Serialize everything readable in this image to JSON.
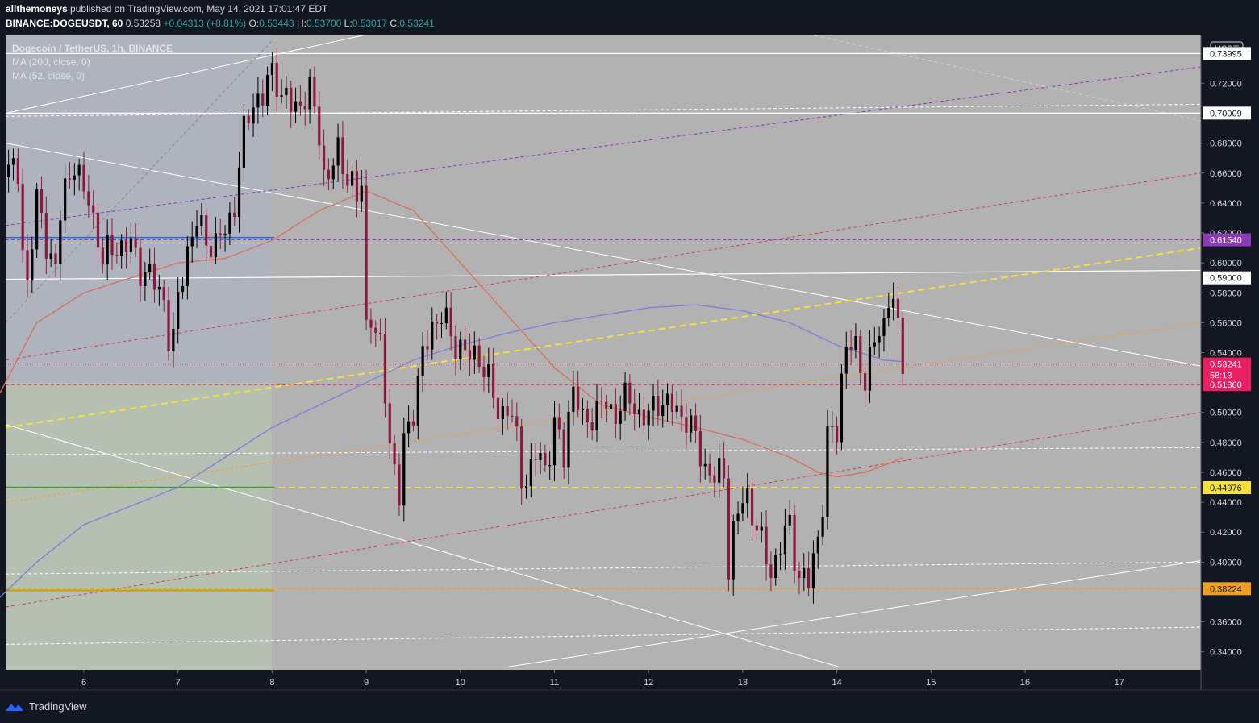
{
  "publish": {
    "user": "allthemoneys",
    "text": "published on TradingView.com, May 14, 2021 17:01:47 EDT"
  },
  "quote": {
    "symbol": "BINANCE:DOGEUSDT, 60",
    "last": "0.53258",
    "change": "+0.04313 (+8.81%)",
    "o_label": "O:",
    "o": "0.53443",
    "h_label": "H:",
    "h": "0.53700",
    "l_label": "L:",
    "l": "0.53017",
    "c_label": "C:",
    "c": "0.53241"
  },
  "legend": {
    "title": "Dogecoin / TetherUS, 1h, BINANCE",
    "ma200": "MA (200, close, 0)",
    "ma52": "MA (52, close, 0)"
  },
  "footer": {
    "brand": "TradingView"
  },
  "colors": {
    "bg_plot": "#b2b2b2",
    "up": "#000000",
    "down": "#8b1a3a",
    "ma200": "#7b7fd9",
    "ma52": "#d9705a",
    "purple": "#8a3bb5",
    "red": "#d04050",
    "yellow": "#f5e13a",
    "orange": "#f0a020"
  },
  "chart_data": {
    "type": "candlestick",
    "currency": "USDT",
    "x_ticks": [
      "6",
      "7",
      "8",
      "9",
      "10",
      "11",
      "12",
      "13",
      "14",
      "15",
      "16",
      "17"
    ],
    "y_ticks": [
      "0.72000",
      "0.68000",
      "0.66000",
      "0.64000",
      "0.62000",
      "0.60000",
      "0.58000",
      "0.56000",
      "0.54000",
      "0.50000",
      "0.48000",
      "0.46000",
      "0.44000",
      "0.42000",
      "0.40000",
      "0.36000",
      "0.34000"
    ],
    "ylim": [
      0.328,
      0.752
    ],
    "price_labels": [
      {
        "text": "0.73995",
        "value": 0.73995,
        "bg": "#ffffff",
        "fg": "#131722"
      },
      {
        "text": "0.70009",
        "value": 0.70009,
        "bg": "#ffffff",
        "fg": "#131722"
      },
      {
        "text": "0.61540",
        "value": 0.6154,
        "bg": "#8a3bb5",
        "fg": "#ffffff"
      },
      {
        "text": "0.59000",
        "value": 0.59,
        "bg": "#ffffff",
        "fg": "#131722"
      },
      {
        "text": "0.53241",
        "value": 0.53241,
        "bg": "#e91e63",
        "fg": "#ffffff",
        "sub": "58:13"
      },
      {
        "text": "0.51860",
        "value": 0.5186,
        "bg": "#e91e63",
        "fg": "#ffffff"
      },
      {
        "text": "0.44976",
        "value": 0.44976,
        "bg": "#f5e13a",
        "fg": "#131722"
      },
      {
        "text": "0.38224",
        "value": 0.38224,
        "bg": "#f0a020",
        "fg": "#131722"
      }
    ],
    "close_path": [
      [
        5.05,
        0.668
      ],
      [
        5.1,
        0.672
      ],
      [
        5.2,
        0.668
      ],
      [
        5.3,
        0.655
      ],
      [
        5.35,
        0.605
      ],
      [
        5.4,
        0.59
      ],
      [
        5.45,
        0.62
      ],
      [
        5.5,
        0.64
      ],
      [
        5.6,
        0.612
      ],
      [
        5.7,
        0.6
      ],
      [
        5.75,
        0.63
      ],
      [
        5.85,
        0.66
      ],
      [
        5.9,
        0.67
      ],
      [
        6.0,
        0.645
      ],
      [
        6.05,
        0.64
      ],
      [
        6.15,
        0.62
      ],
      [
        6.2,
        0.6
      ],
      [
        6.3,
        0.61
      ],
      [
        6.4,
        0.612
      ],
      [
        6.5,
        0.61
      ],
      [
        6.6,
        0.598
      ],
      [
        6.7,
        0.59
      ],
      [
        6.75,
        0.585
      ],
      [
        6.85,
        0.578
      ],
      [
        6.9,
        0.55
      ],
      [
        6.95,
        0.545
      ],
      [
        7.0,
        0.575
      ],
      [
        7.05,
        0.595
      ],
      [
        7.1,
        0.61
      ],
      [
        7.2,
        0.625
      ],
      [
        7.3,
        0.618
      ],
      [
        7.4,
        0.61
      ],
      [
        7.5,
        0.622
      ],
      [
        7.6,
        0.64
      ],
      [
        7.7,
        0.685
      ],
      [
        7.75,
        0.7
      ],
      [
        7.8,
        0.71
      ],
      [
        7.9,
        0.708
      ],
      [
        8.0,
        0.73
      ],
      [
        8.05,
        0.725
      ],
      [
        8.1,
        0.71
      ],
      [
        8.2,
        0.705
      ],
      [
        8.3,
        0.708
      ],
      [
        8.4,
        0.712
      ],
      [
        8.5,
        0.69
      ],
      [
        8.55,
        0.66
      ],
      [
        8.6,
        0.655
      ],
      [
        8.7,
        0.675
      ],
      [
        8.8,
        0.66
      ],
      [
        8.9,
        0.64
      ],
      [
        8.95,
        0.655
      ],
      [
        9.0,
        0.56
      ],
      [
        9.05,
        0.565
      ],
      [
        9.1,
        0.55
      ],
      [
        9.15,
        0.54
      ],
      [
        9.2,
        0.515
      ],
      [
        9.25,
        0.485
      ],
      [
        9.3,
        0.46
      ],
      [
        9.35,
        0.44
      ],
      [
        9.4,
        0.48
      ],
      [
        9.5,
        0.505
      ],
      [
        9.6,
        0.535
      ],
      [
        9.7,
        0.56
      ],
      [
        9.8,
        0.565
      ],
      [
        9.9,
        0.55
      ],
      [
        10.0,
        0.545
      ],
      [
        10.1,
        0.535
      ],
      [
        10.2,
        0.54
      ],
      [
        10.3,
        0.52
      ],
      [
        10.4,
        0.5
      ],
      [
        10.5,
        0.505
      ],
      [
        10.6,
        0.48
      ],
      [
        10.65,
        0.46
      ],
      [
        10.7,
        0.455
      ],
      [
        10.8,
        0.47
      ],
      [
        10.9,
        0.465
      ],
      [
        11.0,
        0.49
      ],
      [
        11.1,
        0.47
      ],
      [
        11.15,
        0.5
      ],
      [
        11.2,
        0.52
      ],
      [
        11.3,
        0.49
      ],
      [
        11.4,
        0.5
      ],
      [
        11.5,
        0.505
      ],
      [
        11.6,
        0.5
      ],
      [
        11.7,
        0.505
      ],
      [
        11.8,
        0.508
      ],
      [
        11.9,
        0.5
      ],
      [
        12.0,
        0.495
      ],
      [
        12.1,
        0.51
      ],
      [
        12.2,
        0.505
      ],
      [
        12.3,
        0.5
      ],
      [
        12.4,
        0.498
      ],
      [
        12.5,
        0.48
      ],
      [
        12.6,
        0.465
      ],
      [
        12.7,
        0.455
      ],
      [
        12.8,
        0.46
      ],
      [
        12.85,
        0.4
      ],
      [
        12.9,
        0.42
      ],
      [
        13.0,
        0.44
      ],
      [
        13.05,
        0.445
      ],
      [
        13.1,
        0.435
      ],
      [
        13.2,
        0.41
      ],
      [
        13.3,
        0.395
      ],
      [
        13.4,
        0.41
      ],
      [
        13.5,
        0.425
      ],
      [
        13.6,
        0.39
      ],
      [
        13.7,
        0.385
      ],
      [
        13.8,
        0.42
      ],
      [
        13.85,
        0.44
      ],
      [
        13.9,
        0.48
      ],
      [
        14.0,
        0.49
      ],
      [
        14.05,
        0.525
      ],
      [
        14.1,
        0.545
      ],
      [
        14.2,
        0.54
      ],
      [
        14.3,
        0.525
      ],
      [
        14.4,
        0.545
      ],
      [
        14.5,
        0.56
      ],
      [
        14.55,
        0.58
      ],
      [
        14.6,
        0.575
      ],
      [
        14.65,
        0.55
      ],
      [
        14.7,
        0.532
      ]
    ],
    "ma200_path": [
      [
        5.0,
        0.37
      ],
      [
        5.5,
        0.4
      ],
      [
        6.0,
        0.425
      ],
      [
        7.0,
        0.45
      ],
      [
        7.5,
        0.47
      ],
      [
        8.0,
        0.49
      ],
      [
        8.5,
        0.505
      ],
      [
        9.0,
        0.52
      ],
      [
        9.5,
        0.535
      ],
      [
        10.0,
        0.545
      ],
      [
        10.5,
        0.553
      ],
      [
        11.0,
        0.56
      ],
      [
        11.5,
        0.565
      ],
      [
        12.0,
        0.57
      ],
      [
        12.5,
        0.572
      ],
      [
        13.0,
        0.568
      ],
      [
        13.5,
        0.56
      ],
      [
        14.0,
        0.545
      ],
      [
        14.5,
        0.535
      ],
      [
        14.7,
        0.534
      ]
    ],
    "ma52_path": [
      [
        5.0,
        0.5
      ],
      [
        5.5,
        0.56
      ],
      [
        6.0,
        0.58
      ],
      [
        7.0,
        0.6
      ],
      [
        7.5,
        0.603
      ],
      [
        8.0,
        0.615
      ],
      [
        8.5,
        0.635
      ],
      [
        9.0,
        0.648
      ],
      [
        9.5,
        0.635
      ],
      [
        10.0,
        0.6
      ],
      [
        10.5,
        0.565
      ],
      [
        11.0,
        0.53
      ],
      [
        11.5,
        0.505
      ],
      [
        12.0,
        0.497
      ],
      [
        12.5,
        0.49
      ],
      [
        13.0,
        0.482
      ],
      [
        13.5,
        0.47
      ],
      [
        13.8,
        0.46
      ],
      [
        14.0,
        0.457
      ],
      [
        14.3,
        0.46
      ],
      [
        14.6,
        0.467
      ],
      [
        14.7,
        0.47
      ]
    ]
  }
}
